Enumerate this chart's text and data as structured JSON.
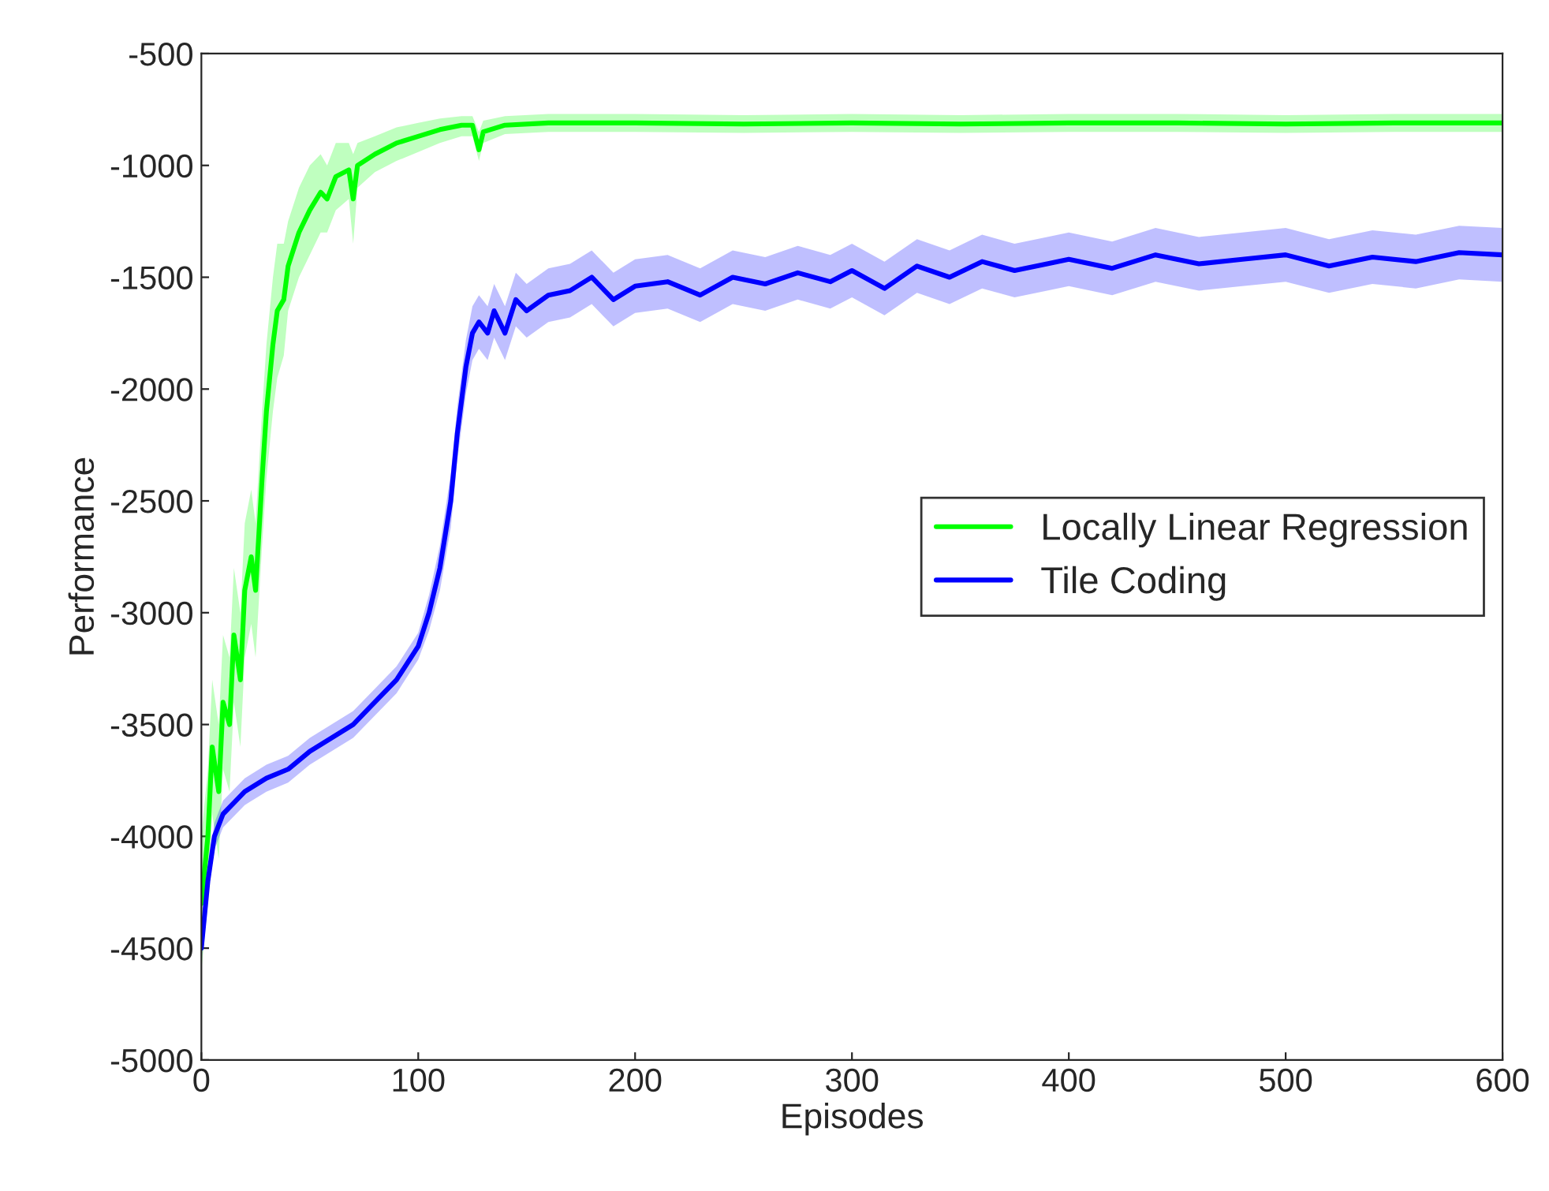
{
  "chart_data": {
    "type": "line",
    "xlabel": "Episodes",
    "ylabel": "Performance",
    "xlim": [
      0,
      600
    ],
    "xticks": [
      0,
      100,
      200,
      300,
      400,
      500,
      600
    ],
    "ylim": [
      -5000,
      -500
    ],
    "yticks": [
      -5000,
      -4500,
      -4000,
      -3500,
      -3000,
      -2500,
      -2000,
      -1500,
      -1000,
      -500
    ],
    "grid": false,
    "legend": "right",
    "line_style": "solid",
    "marker": "none",
    "series": [
      {
        "name": "Locally Linear Regression",
        "color": "#00ff00",
        "x": [
          0,
          3,
          5,
          8,
          10,
          13,
          15,
          18,
          20,
          23,
          25,
          28,
          30,
          33,
          35,
          38,
          40,
          45,
          50,
          55,
          58,
          62,
          68,
          70,
          72,
          80,
          90,
          100,
          110,
          120,
          125,
          128,
          130,
          140,
          160,
          200,
          250,
          300,
          350,
          400,
          450,
          500,
          550,
          600
        ],
        "values": [
          -4300,
          -4000,
          -3600,
          -3800,
          -3400,
          -3500,
          -3100,
          -3300,
          -2900,
          -2750,
          -2900,
          -2400,
          -2100,
          -1800,
          -1650,
          -1600,
          -1450,
          -1300,
          -1200,
          -1120,
          -1150,
          -1050,
          -1020,
          -1150,
          -1000,
          -950,
          -900,
          -870,
          -840,
          -820,
          -820,
          -930,
          -850,
          -820,
          -810,
          -810,
          -815,
          -810,
          -815,
          -810,
          -810,
          -815,
          -810,
          -810
        ],
        "lower": [
          -4600,
          -4300,
          -3900,
          -4100,
          -3700,
          -3800,
          -3400,
          -3600,
          -3200,
          -3050,
          -3200,
          -2700,
          -2400,
          -2100,
          -1950,
          -1850,
          -1650,
          -1500,
          -1400,
          -1300,
          -1300,
          -1200,
          -1150,
          -1350,
          -1100,
          -1030,
          -980,
          -940,
          -900,
          -870,
          -870,
          -980,
          -900,
          -860,
          -850,
          -850,
          -855,
          -850,
          -855,
          -850,
          -850,
          -855,
          -850,
          -850
        ],
        "upper": [
          -4000,
          -3700,
          -3300,
          -3500,
          -3100,
          -3200,
          -2800,
          -3000,
          -2600,
          -2450,
          -2600,
          -2100,
          -1800,
          -1500,
          -1350,
          -1350,
          -1250,
          -1100,
          -1000,
          -950,
          -1000,
          -900,
          -900,
          -950,
          -900,
          -870,
          -830,
          -810,
          -790,
          -780,
          -780,
          -850,
          -800,
          -780,
          -770,
          -770,
          -775,
          -770,
          -775,
          -770,
          -770,
          -775,
          -770,
          -770
        ]
      },
      {
        "name": "Tile Coding",
        "color": "#0000ff",
        "x": [
          0,
          3,
          6,
          10,
          20,
          30,
          40,
          50,
          60,
          70,
          80,
          90,
          100,
          105,
          110,
          115,
          118,
          122,
          125,
          128,
          132,
          135,
          140,
          145,
          150,
          160,
          170,
          180,
          190,
          200,
          215,
          230,
          245,
          260,
          275,
          290,
          300,
          315,
          330,
          345,
          360,
          375,
          390,
          400,
          420,
          440,
          460,
          480,
          500,
          520,
          540,
          560,
          580,
          600
        ],
        "values": [
          -4500,
          -4200,
          -4000,
          -3900,
          -3800,
          -3740,
          -3700,
          -3620,
          -3560,
          -3500,
          -3400,
          -3300,
          -3150,
          -3000,
          -2800,
          -2500,
          -2200,
          -1900,
          -1750,
          -1700,
          -1750,
          -1650,
          -1750,
          -1600,
          -1650,
          -1580,
          -1560,
          -1500,
          -1600,
          -1540,
          -1520,
          -1580,
          -1500,
          -1530,
          -1480,
          -1520,
          -1470,
          -1550,
          -1450,
          -1500,
          -1430,
          -1470,
          -1440,
          -1420,
          -1460,
          -1400,
          -1440,
          -1420,
          -1400,
          -1450,
          -1410,
          -1430,
          -1390,
          -1400
        ],
        "lower": [
          -4560,
          -4260,
          -4060,
          -3960,
          -3860,
          -3800,
          -3760,
          -3680,
          -3620,
          -3560,
          -3460,
          -3360,
          -3210,
          -3080,
          -2900,
          -2620,
          -2320,
          -2020,
          -1870,
          -1820,
          -1870,
          -1770,
          -1870,
          -1720,
          -1770,
          -1700,
          -1680,
          -1620,
          -1720,
          -1660,
          -1640,
          -1700,
          -1620,
          -1650,
          -1600,
          -1640,
          -1590,
          -1670,
          -1570,
          -1620,
          -1550,
          -1590,
          -1560,
          -1540,
          -1580,
          -1520,
          -1560,
          -1540,
          -1520,
          -1570,
          -1530,
          -1550,
          -1510,
          -1520
        ],
        "upper": [
          -4440,
          -4140,
          -3940,
          -3840,
          -3740,
          -3680,
          -3640,
          -3560,
          -3500,
          -3440,
          -3340,
          -3240,
          -3090,
          -2920,
          -2700,
          -2380,
          -2080,
          -1780,
          -1630,
          -1580,
          -1630,
          -1530,
          -1630,
          -1480,
          -1530,
          -1460,
          -1440,
          -1380,
          -1480,
          -1420,
          -1400,
          -1460,
          -1380,
          -1410,
          -1360,
          -1400,
          -1350,
          -1430,
          -1330,
          -1380,
          -1310,
          -1350,
          -1320,
          -1300,
          -1340,
          -1280,
          -1320,
          -1300,
          -1280,
          -1330,
          -1290,
          -1310,
          -1270,
          -1280
        ]
      }
    ]
  }
}
